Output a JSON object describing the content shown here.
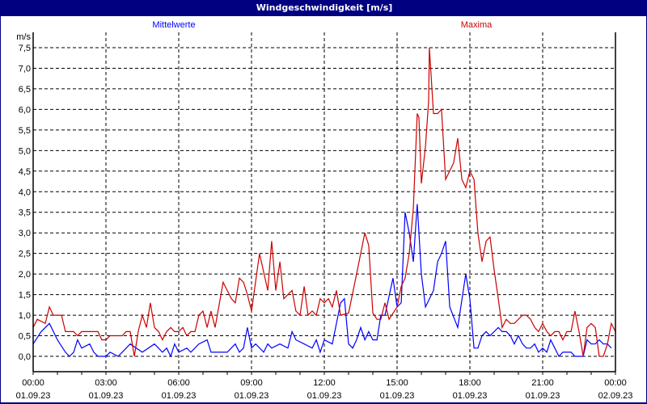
{
  "window": {
    "title": "Windgeschwindigkeit [m/s]"
  },
  "chart_data": {
    "type": "line",
    "title": "Windgeschwindigkeit [m/s]",
    "ylabel": "m/s",
    "xlabel": "",
    "ylim": [
      0,
      7.5
    ],
    "xlim_hours": [
      0,
      24
    ],
    "grid": true,
    "y_ticks": [
      "0,0",
      "0,5",
      "1,0",
      "1,5",
      "2,0",
      "2,5",
      "3,0",
      "3,5",
      "4,0",
      "4,5",
      "5,0",
      "5,5",
      "6,0",
      "6,5",
      "7,0",
      "7,5"
    ],
    "x_ticks": [
      {
        "time": "00:00",
        "date": "01.09.23"
      },
      {
        "time": "03:00",
        "date": "01.09.23"
      },
      {
        "time": "06:00",
        "date": "01.09.23"
      },
      {
        "time": "09:00",
        "date": "01.09.23"
      },
      {
        "time": "12:00",
        "date": "01.09.23"
      },
      {
        "time": "15:00",
        "date": "01.09.23"
      },
      {
        "time": "18:00",
        "date": "01.09.23"
      },
      {
        "time": "21:00",
        "date": "01.09.23"
      },
      {
        "time": "00:00",
        "date": "02.09.23"
      }
    ],
    "series": [
      {
        "name": "Mittelwerte",
        "color": "#0000ff",
        "legend": "top-left",
        "points": [
          [
            0,
            0.3
          ],
          [
            0.33,
            0.6
          ],
          [
            0.67,
            0.8
          ],
          [
            1,
            0.4
          ],
          [
            1.33,
            0.1
          ],
          [
            1.5,
            0.0
          ],
          [
            1.67,
            0.1
          ],
          [
            1.83,
            0.4
          ],
          [
            2,
            0.2
          ],
          [
            2.33,
            0.3
          ],
          [
            2.5,
            0.1
          ],
          [
            2.67,
            0.0
          ],
          [
            3,
            0.0
          ],
          [
            3.17,
            0.1
          ],
          [
            3.5,
            0.0
          ],
          [
            3.67,
            0.1
          ],
          [
            4,
            0.3
          ],
          [
            4.5,
            0.1
          ],
          [
            5,
            0.3
          ],
          [
            5.33,
            0.1
          ],
          [
            5.5,
            0.2
          ],
          [
            5.67,
            0.0
          ],
          [
            5.83,
            0.3
          ],
          [
            6,
            0.1
          ],
          [
            6.33,
            0.2
          ],
          [
            6.5,
            0.1
          ],
          [
            6.83,
            0.3
          ],
          [
            7.17,
            0.4
          ],
          [
            7.33,
            0.1
          ],
          [
            8,
            0.1
          ],
          [
            8.33,
            0.3
          ],
          [
            8.5,
            0.1
          ],
          [
            8.67,
            0.2
          ],
          [
            8.83,
            0.7
          ],
          [
            9,
            0.2
          ],
          [
            9.17,
            0.3
          ],
          [
            9.5,
            0.1
          ],
          [
            9.67,
            0.3
          ],
          [
            9.83,
            0.2
          ],
          [
            10.17,
            0.3
          ],
          [
            10.5,
            0.2
          ],
          [
            10.67,
            0.6
          ],
          [
            10.83,
            0.4
          ],
          [
            11.17,
            0.3
          ],
          [
            11.5,
            0.2
          ],
          [
            11.67,
            0.4
          ],
          [
            11.83,
            0.1
          ],
          [
            12,
            0.4
          ],
          [
            12.33,
            0.3
          ],
          [
            12.67,
            1.3
          ],
          [
            12.83,
            1.4
          ],
          [
            13,
            0.3
          ],
          [
            13.17,
            0.2
          ],
          [
            13.33,
            0.4
          ],
          [
            13.5,
            0.7
          ],
          [
            13.67,
            0.4
          ],
          [
            13.83,
            0.6
          ],
          [
            14,
            0.4
          ],
          [
            14.17,
            0.4
          ],
          [
            14.33,
            1.0
          ],
          [
            14.5,
            1.0
          ],
          [
            14.83,
            1.9
          ],
          [
            15,
            1.2
          ],
          [
            15.17,
            1.3
          ],
          [
            15.33,
            3.5
          ],
          [
            15.5,
            3.0
          ],
          [
            15.67,
            2.3
          ],
          [
            15.83,
            3.7
          ],
          [
            16,
            2.0
          ],
          [
            16.17,
            1.2
          ],
          [
            16.5,
            1.6
          ],
          [
            16.67,
            2.3
          ],
          [
            16.83,
            2.5
          ],
          [
            17,
            2.8
          ],
          [
            17.17,
            1.2
          ],
          [
            17.5,
            0.7
          ],
          [
            17.83,
            2.0
          ],
          [
            18,
            1.4
          ],
          [
            18.17,
            0.2
          ],
          [
            18.33,
            0.2
          ],
          [
            18.5,
            0.5
          ],
          [
            18.67,
            0.6
          ],
          [
            18.83,
            0.5
          ],
          [
            19,
            0.6
          ],
          [
            19.17,
            0.7
          ],
          [
            19.33,
            0.6
          ],
          [
            19.5,
            0.6
          ],
          [
            19.67,
            0.5
          ],
          [
            19.83,
            0.3
          ],
          [
            20,
            0.5
          ],
          [
            20.17,
            0.3
          ],
          [
            20.33,
            0.2
          ],
          [
            20.5,
            0.2
          ],
          [
            20.67,
            0.3
          ],
          [
            20.83,
            0.1
          ],
          [
            21,
            0.2
          ],
          [
            21.17,
            0.1
          ],
          [
            21.33,
            0.4
          ],
          [
            21.5,
            0.2
          ],
          [
            21.67,
            0.0
          ],
          [
            21.83,
            0.1
          ],
          [
            22.17,
            0.1
          ],
          [
            22.33,
            0.0
          ],
          [
            22.67,
            0.0
          ],
          [
            22.83,
            0.4
          ],
          [
            23,
            0.3
          ],
          [
            23.17,
            0.3
          ],
          [
            23.33,
            0.4
          ],
          [
            23.5,
            0.3
          ],
          [
            23.67,
            0.3
          ],
          [
            23.83,
            0.2
          ]
        ]
      },
      {
        "name": "Maxima",
        "color": "#cc0000",
        "legend": "top-right",
        "points": [
          [
            0,
            0.7
          ],
          [
            0.17,
            0.9
          ],
          [
            0.5,
            0.8
          ],
          [
            0.67,
            1.2
          ],
          [
            0.83,
            1.0
          ],
          [
            1.17,
            1.0
          ],
          [
            1.33,
            0.6
          ],
          [
            1.67,
            0.6
          ],
          [
            1.83,
            0.5
          ],
          [
            2,
            0.6
          ],
          [
            2.67,
            0.6
          ],
          [
            2.83,
            0.4
          ],
          [
            3,
            0.4
          ],
          [
            3.17,
            0.5
          ],
          [
            3.67,
            0.5
          ],
          [
            3.83,
            0.6
          ],
          [
            4,
            0.6
          ],
          [
            4.17,
            0.0
          ],
          [
            4.33,
            0.6
          ],
          [
            4.5,
            1.0
          ],
          [
            4.67,
            0.7
          ],
          [
            4.83,
            1.3
          ],
          [
            5,
            0.7
          ],
          [
            5.17,
            0.6
          ],
          [
            5.33,
            0.4
          ],
          [
            5.5,
            0.6
          ],
          [
            5.67,
            0.7
          ],
          [
            5.83,
            0.6
          ],
          [
            6,
            0.6
          ],
          [
            6.17,
            0.7
          ],
          [
            6.33,
            0.5
          ],
          [
            6.5,
            0.6
          ],
          [
            6.67,
            0.6
          ],
          [
            6.83,
            1.0
          ],
          [
            7,
            1.1
          ],
          [
            7.17,
            0.7
          ],
          [
            7.33,
            1.1
          ],
          [
            7.5,
            0.7
          ],
          [
            7.83,
            1.8
          ],
          [
            8,
            1.6
          ],
          [
            8.17,
            1.4
          ],
          [
            8.33,
            1.3
          ],
          [
            8.5,
            1.9
          ],
          [
            8.67,
            1.8
          ],
          [
            8.83,
            1.5
          ],
          [
            9,
            1.1
          ],
          [
            9.33,
            2.5
          ],
          [
            9.67,
            1.6
          ],
          [
            9.83,
            2.8
          ],
          [
            10,
            1.6
          ],
          [
            10.17,
            2.3
          ],
          [
            10.33,
            1.4
          ],
          [
            10.5,
            1.5
          ],
          [
            10.67,
            1.6
          ],
          [
            10.83,
            1.1
          ],
          [
            11,
            1.0
          ],
          [
            11.17,
            1.7
          ],
          [
            11.33,
            1.0
          ],
          [
            11.5,
            1.1
          ],
          [
            11.67,
            1.0
          ],
          [
            11.83,
            1.4
          ],
          [
            12,
            1.3
          ],
          [
            12.17,
            1.4
          ],
          [
            12.33,
            1.2
          ],
          [
            12.5,
            1.6
          ],
          [
            12.67,
            1.0
          ],
          [
            13,
            1.05
          ],
          [
            13.33,
            2.0
          ],
          [
            13.67,
            3.0
          ],
          [
            13.83,
            2.7
          ],
          [
            14,
            1.05
          ],
          [
            14.17,
            0.9
          ],
          [
            14.33,
            0.9
          ],
          [
            14.5,
            1.3
          ],
          [
            14.67,
            0.9
          ],
          [
            15,
            1.2
          ],
          [
            15.17,
            1.7
          ],
          [
            15.33,
            1.9
          ],
          [
            15.5,
            2.5
          ],
          [
            15.67,
            3.6
          ],
          [
            15.83,
            5.9
          ],
          [
            15.9,
            5.8
          ],
          [
            16,
            4.2
          ],
          [
            16.17,
            5.1
          ],
          [
            16.3,
            6.2
          ],
          [
            16.33,
            7.5
          ],
          [
            16.5,
            5.9
          ],
          [
            16.67,
            5.9
          ],
          [
            16.83,
            6.0
          ],
          [
            17,
            4.3
          ],
          [
            17.33,
            4.7
          ],
          [
            17.5,
            5.3
          ],
          [
            17.67,
            4.3
          ],
          [
            17.83,
            4.1
          ],
          [
            18,
            4.5
          ],
          [
            18.17,
            4.3
          ],
          [
            18.33,
            3.0
          ],
          [
            18.5,
            2.3
          ],
          [
            18.67,
            2.8
          ],
          [
            18.83,
            2.9
          ],
          [
            19,
            2.1
          ],
          [
            19.17,
            1.4
          ],
          [
            19.33,
            0.7
          ],
          [
            19.5,
            0.9
          ],
          [
            19.67,
            0.8
          ],
          [
            19.83,
            0.8
          ],
          [
            20.17,
            1.0
          ],
          [
            20.33,
            1.0
          ],
          [
            20.5,
            0.9
          ],
          [
            20.67,
            0.7
          ],
          [
            20.83,
            0.6
          ],
          [
            21,
            0.8
          ],
          [
            21.17,
            0.6
          ],
          [
            21.33,
            0.5
          ],
          [
            21.5,
            0.6
          ],
          [
            21.67,
            0.6
          ],
          [
            21.83,
            0.4
          ],
          [
            22,
            0.6
          ],
          [
            22.17,
            0.6
          ],
          [
            22.33,
            1.1
          ],
          [
            22.5,
            0.6
          ],
          [
            22.67,
            0.0
          ],
          [
            22.83,
            0.7
          ],
          [
            23,
            0.8
          ],
          [
            23.17,
            0.7
          ],
          [
            23.33,
            0.0
          ],
          [
            23.5,
            0.0
          ],
          [
            23.67,
            0.3
          ],
          [
            23.83,
            0.8
          ],
          [
            24,
            0.6
          ]
        ]
      }
    ]
  }
}
